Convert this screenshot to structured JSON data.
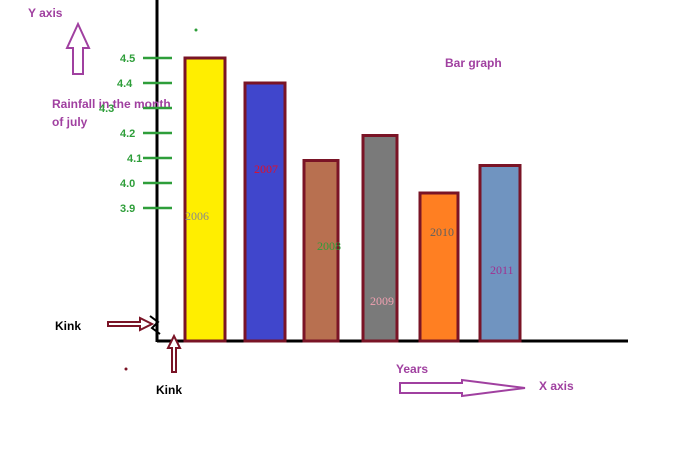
{
  "chart_data": {
    "type": "bar",
    "title": "Bar graph",
    "ylabel_axis": "Y axis",
    "xlabel_axis": "X axis",
    "ylabel": "Rainfall in the month of july",
    "xlabel": "Years",
    "kink_label": "Kink",
    "categories": [
      "2006",
      "2007",
      "2008",
      "2009",
      "2010",
      "2011"
    ],
    "values": [
      4.5,
      4.4,
      4.09,
      4.19,
      3.96,
      4.07
    ],
    "bar_colors": [
      "#ffee00",
      "#4046cc",
      "#b87050",
      "#7a7a7a",
      "#ff7f22",
      "#7094c0"
    ],
    "bar_border_color": "#7a1426",
    "label_colors": [
      "#8a8a8a",
      "#e0102a",
      "#2e9e3a",
      "#f0a0b0",
      "#606060",
      "#a03090"
    ],
    "y_ticks": [
      "3.9",
      "4.0",
      "4.1",
      "4.2",
      "4.3",
      "4.4",
      "4.5"
    ],
    "ylim": [
      3.9,
      4.5
    ],
    "grid": false,
    "axis_color": "#000000",
    "text_purple": "#a040a0",
    "tick_green": "#2e9e3a",
    "kink_arrow_color": "#7a1426"
  }
}
